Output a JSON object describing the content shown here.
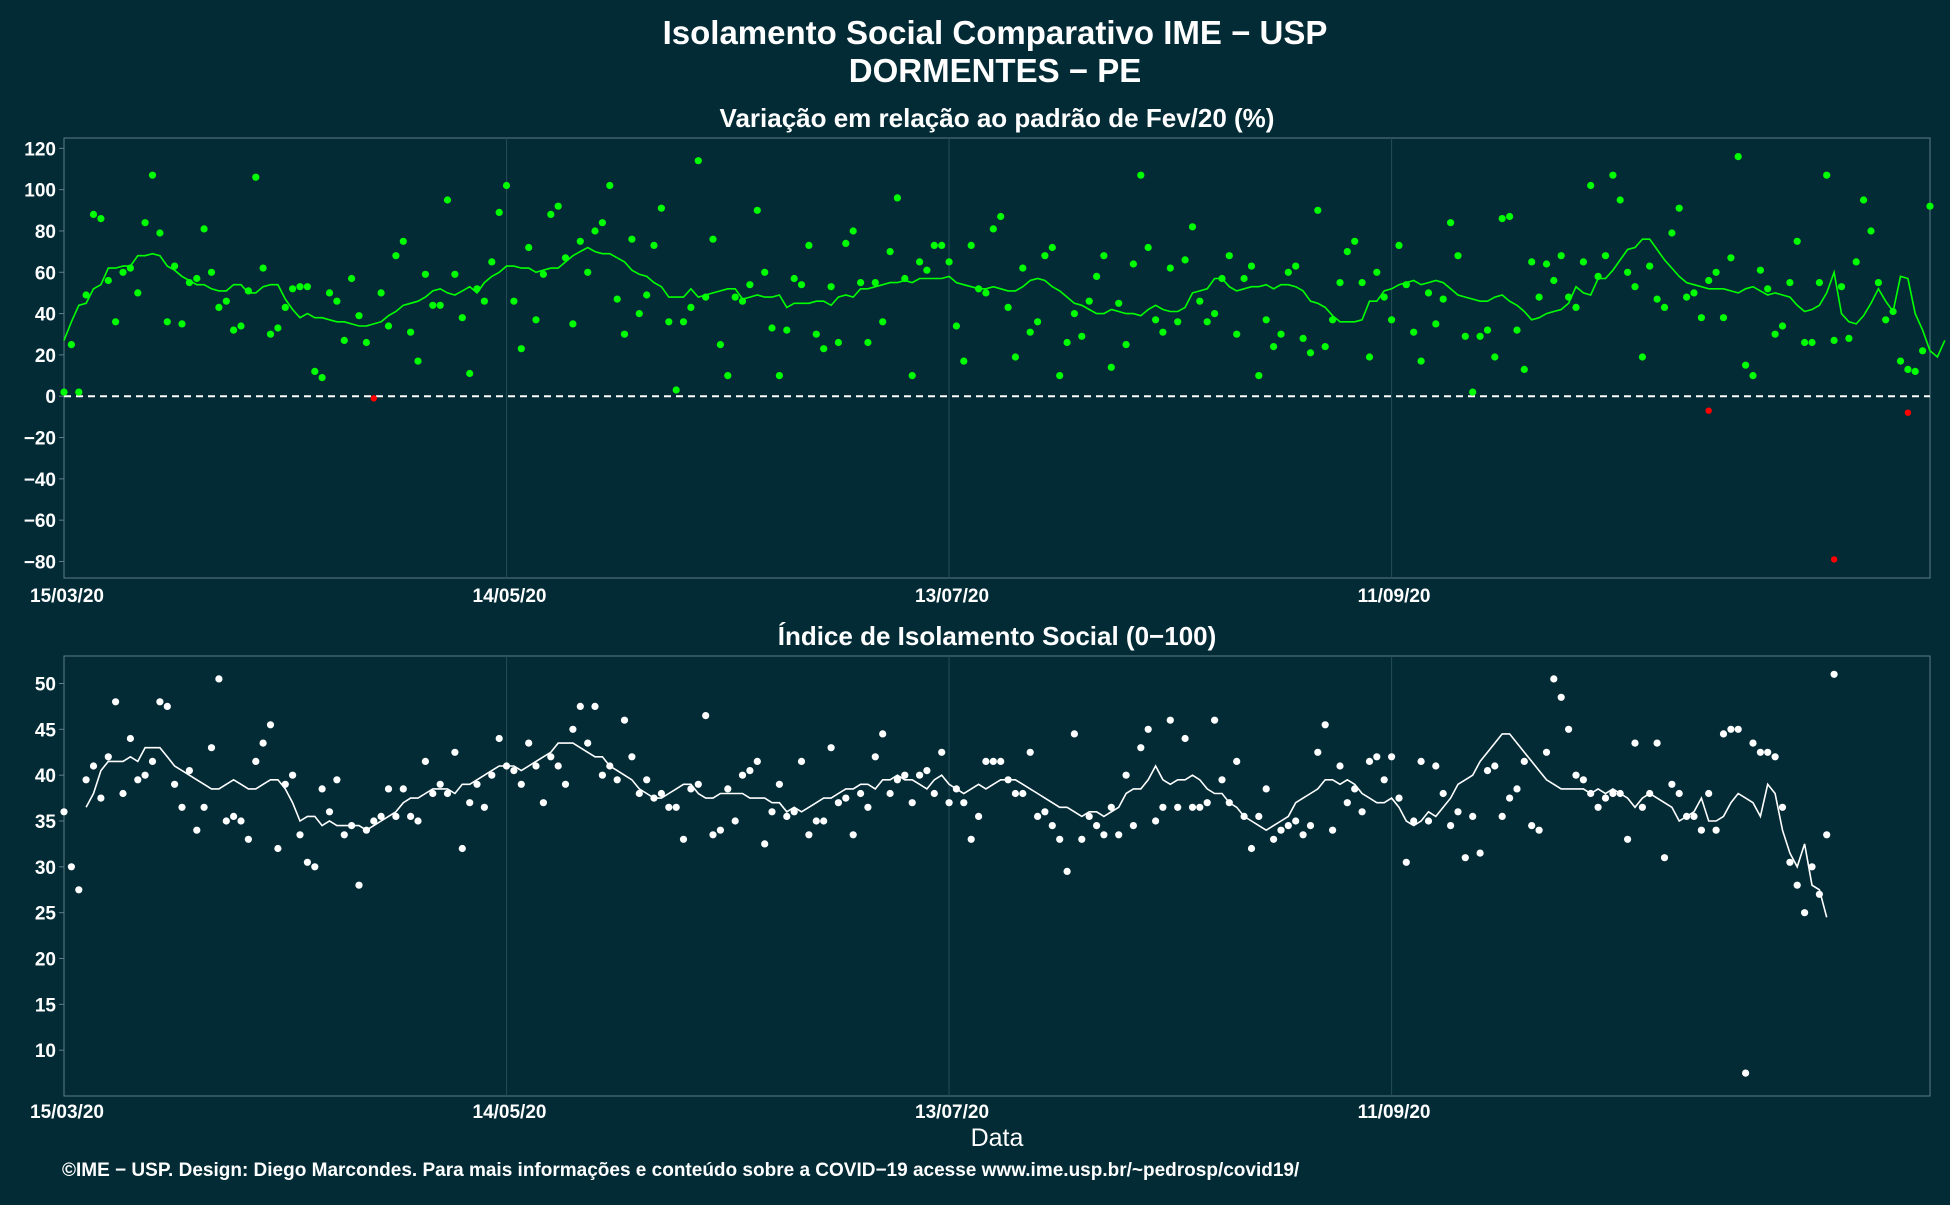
{
  "title_line1": "Isolamento Social Comparativo IME − USP",
  "title_line2": "DORMENTES − PE",
  "xlabel": "Data",
  "footer": "©IME − USP. Design: Diego Marcondes. Para mais informações e conteúdo sobre a COVID−19 acesse www.ime.usp.br/~pedrosp/covid19/",
  "colors": {
    "background": "#022b36",
    "text": "#ffffff",
    "grid": "#264c57",
    "green": "#00ff00",
    "red": "#ff0000",
    "white": "#ffffff"
  },
  "chart_data": [
    {
      "type": "scatter",
      "title": "Variação em relação ao padrão de Fev/20 (%)",
      "x_tick_labels": [
        "15/03/20",
        "14/05/20",
        "13/07/20",
        "11/09/20"
      ],
      "x_tick_days": [
        0,
        60,
        120,
        180
      ],
      "ylim": [
        -88,
        125
      ],
      "y_ticks": [
        -80,
        -60,
        -40,
        -20,
        0,
        20,
        40,
        60,
        80,
        100,
        120
      ],
      "reference_line": 0,
      "grid": true,
      "series": [
        {
          "kind": "points",
          "values": [
            2,
            25,
            2,
            49,
            88,
            86,
            56,
            36,
            60,
            62,
            50,
            84,
            107,
            79,
            36,
            63,
            35,
            55,
            57,
            81,
            60,
            43,
            46,
            32,
            34,
            51,
            106,
            62,
            30,
            33,
            43,
            52,
            53,
            53,
            12,
            9,
            50,
            46,
            27,
            57,
            39,
            26,
            -1,
            50,
            34,
            68,
            75,
            31,
            17,
            59,
            44,
            44,
            95,
            59,
            38,
            11,
            52,
            46,
            65,
            89,
            102,
            46,
            23,
            72,
            37,
            59,
            88,
            92,
            67,
            35,
            75,
            60,
            80,
            84,
            102,
            47,
            30,
            76,
            40,
            49,
            73,
            91,
            36,
            3,
            36,
            43,
            114,
            48,
            76,
            25,
            10,
            48,
            46,
            54,
            90,
            60,
            33,
            10,
            32,
            57,
            54,
            73,
            30,
            23,
            53,
            26,
            74,
            80,
            55,
            26,
            55,
            36,
            70,
            96,
            57,
            10,
            65,
            61,
            73,
            73,
            65,
            34,
            17,
            73,
            52,
            50,
            81,
            87,
            43,
            19,
            62,
            31,
            36,
            68,
            72,
            10,
            26,
            40,
            29,
            46,
            58,
            68,
            14,
            45,
            25,
            64,
            107,
            72,
            37,
            31,
            62,
            36,
            66,
            82,
            46,
            36,
            40,
            57,
            68,
            30,
            57,
            63,
            10,
            37,
            24,
            30,
            60,
            63,
            28,
            21,
            90,
            24,
            37,
            55,
            70,
            75,
            55,
            19,
            60,
            48,
            37,
            73,
            54,
            31,
            17,
            50,
            35,
            47,
            84,
            68,
            29,
            2,
            29,
            32,
            19,
            86,
            87,
            32,
            13,
            65,
            48,
            64,
            56,
            68,
            48,
            43,
            65,
            102,
            58,
            68,
            107,
            95,
            60,
            53,
            19,
            63,
            47,
            43,
            79,
            91,
            48,
            50,
            38,
            56,
            60,
            38,
            67,
            116,
            15,
            10,
            61,
            52,
            30,
            34,
            55,
            75,
            26,
            26,
            55,
            107,
            27,
            53,
            28,
            65,
            95,
            80,
            55,
            37,
            41,
            17,
            13,
            12,
            22,
            92
          ]
        },
        {
          "kind": "points_below_zero",
          "points": [
            [
              42,
              -1
            ],
            [
              223,
              -7
            ],
            [
              240,
              -79
            ],
            [
              250,
              -8
            ]
          ]
        },
        {
          "kind": "moving_average",
          "start_day": 0,
          "values": [
            27,
            36,
            44,
            45,
            52,
            54,
            62,
            62,
            63,
            63,
            68,
            68,
            69,
            68,
            63,
            61,
            58,
            56,
            54,
            54,
            52,
            51,
            51,
            54,
            54,
            50,
            50,
            53,
            54,
            54,
            47,
            42,
            38,
            40,
            38,
            38,
            37,
            36,
            36,
            35,
            34,
            34,
            35,
            36,
            39,
            41,
            44,
            45,
            46,
            48,
            51,
            52,
            50,
            49,
            51,
            53,
            50,
            55,
            58,
            60,
            63,
            63,
            62,
            62,
            60,
            61,
            62,
            62,
            65,
            68,
            70,
            72,
            70,
            69,
            69,
            67,
            65,
            61,
            59,
            58,
            55,
            53,
            48,
            48,
            48,
            52,
            48,
            49,
            50,
            51,
            52,
            52,
            47,
            48,
            49,
            48,
            48,
            49,
            43,
            45,
            45,
            45,
            46,
            46,
            44,
            48,
            49,
            48,
            52,
            52,
            53,
            54,
            55,
            55,
            56,
            55,
            57,
            57,
            57,
            57,
            58,
            55,
            54,
            53,
            52,
            52,
            53,
            52,
            51,
            51,
            53,
            56,
            57,
            56,
            53,
            51,
            48,
            45,
            44,
            42,
            40,
            40,
            42,
            41,
            40,
            40,
            39,
            42,
            44,
            42,
            41,
            41,
            43,
            50,
            51,
            52,
            57,
            57,
            53,
            51,
            52,
            53,
            53,
            54,
            52,
            54,
            54,
            53,
            51,
            46,
            45,
            43,
            39,
            36,
            36,
            36,
            37,
            46,
            46,
            51,
            52,
            54,
            55,
            56,
            54,
            55,
            56,
            55,
            52,
            49,
            48,
            47,
            46,
            46,
            48,
            49,
            46,
            44,
            41,
            37,
            38,
            40,
            41,
            42,
            45,
            53,
            50,
            49,
            57,
            57,
            61,
            66,
            71,
            72,
            76,
            76,
            71,
            66,
            62,
            58,
            55,
            54,
            53,
            52,
            52,
            52,
            51,
            50,
            52,
            53,
            51,
            49,
            50,
            49,
            48,
            44,
            41,
            42,
            44,
            50,
            60,
            40,
            36,
            35,
            39,
            45,
            52,
            46,
            41,
            58,
            57,
            40,
            32,
            22,
            19,
            27
          ]
        }
      ]
    },
    {
      "type": "scatter",
      "title": "Índice de Isolamento Social (0−100)",
      "x_tick_labels": [
        "15/03/20",
        "14/05/20",
        "13/07/20",
        "11/09/20"
      ],
      "x_tick_days": [
        0,
        60,
        120,
        180
      ],
      "ylim": [
        5,
        53
      ],
      "y_ticks": [
        10,
        15,
        20,
        25,
        30,
        35,
        40,
        45,
        50
      ],
      "grid": true,
      "series": [
        {
          "kind": "points",
          "values": [
            36,
            30,
            27.5,
            39.5,
            41,
            37.5,
            42,
            48,
            38,
            44,
            39.5,
            40,
            41.5,
            48,
            47.5,
            39,
            36.5,
            40.5,
            34,
            36.5,
            43,
            50.5,
            35,
            35.5,
            35,
            33,
            41.5,
            43.5,
            45.5,
            32,
            39,
            40,
            33.5,
            30.5,
            30,
            38.5,
            36,
            39.5,
            33.5,
            34.5,
            28,
            34,
            35,
            35.5,
            38.5,
            35.5,
            38.5,
            35.5,
            35,
            41.5,
            38,
            39,
            38,
            42.5,
            32,
            37,
            39,
            36.5,
            40,
            44,
            41,
            40.5,
            39,
            43.5,
            41,
            37,
            42,
            41,
            39,
            45,
            47.5,
            43.5,
            47.5,
            40,
            41,
            39.5,
            46,
            42,
            38,
            39.5,
            37.5,
            38,
            36.5,
            36.5,
            33,
            38.5,
            39,
            46.5,
            33.5,
            34,
            38.5,
            35,
            40,
            40.5,
            41.5,
            32.5,
            36,
            39,
            35.5,
            36,
            41.5,
            33.5,
            35,
            35,
            43,
            37,
            37.5,
            33.5,
            38,
            36.5,
            42,
            44.5,
            38,
            39.5,
            40,
            37,
            40,
            40.5,
            38,
            42.5,
            37,
            38.5,
            37,
            33,
            35.5,
            41.5,
            41.5,
            41.5,
            39.5,
            38,
            38,
            42.5,
            35.5,
            36,
            34.5,
            33,
            29.5,
            44.5,
            33,
            35.5,
            34.5,
            33.5,
            36.5,
            33.5,
            40,
            34.5,
            43,
            45,
            35,
            36.5,
            46,
            36.5,
            44,
            36.5,
            36.5,
            37,
            46,
            39.5,
            37,
            41.5,
            35.5,
            32,
            35.5,
            38.5,
            33,
            34,
            34.5,
            35,
            33.5,
            34.5,
            42.5,
            45.5,
            34,
            41,
            37,
            38.5,
            36,
            41.5,
            42,
            39.5,
            42,
            37.5,
            30.5,
            35,
            41.5,
            35,
            41,
            38,
            34.5,
            36,
            31,
            35.5,
            31.5,
            40.5,
            41,
            35.5,
            37.5,
            38.5,
            41.5,
            34.5,
            34,
            42.5,
            50.5,
            48.5,
            45,
            40,
            39.5,
            38,
            36.5,
            37.5,
            38,
            38,
            33,
            43.5,
            36.5,
            38,
            43.5,
            31,
            39,
            38,
            35.5,
            35.5,
            34,
            38,
            34,
            44.5,
            45,
            45,
            7.5,
            43.5,
            42.5,
            42.5,
            42,
            36.5,
            30.5,
            28,
            25,
            30,
            27,
            33.5,
            51
          ]
        },
        {
          "kind": "moving_average",
          "start_day": 3,
          "values": [
            36.5,
            38,
            40.5,
            41.5,
            41.5,
            41.5,
            42,
            41.5,
            43,
            43,
            43,
            42,
            41,
            40.5,
            40,
            39.5,
            39,
            38.5,
            38.5,
            39,
            39.5,
            39,
            38.5,
            38.5,
            39,
            39.5,
            39.5,
            38.5,
            37,
            35,
            35.5,
            35.5,
            34.5,
            35,
            34.5,
            34.5,
            34.5,
            34.5,
            34,
            34.5,
            35,
            35.5,
            36,
            37,
            37.5,
            37.5,
            38,
            38.5,
            38.5,
            38.5,
            38,
            39,
            39,
            39.5,
            40,
            40.5,
            41,
            41,
            41,
            40.5,
            41,
            41.5,
            42,
            42.5,
            43.5,
            43.5,
            43.5,
            43,
            42.5,
            42,
            42,
            41,
            40.5,
            40,
            39.5,
            38.5,
            38,
            37.5,
            37.5,
            38,
            38.5,
            39,
            39,
            38,
            37.5,
            37.5,
            38,
            38,
            38,
            38,
            37.5,
            37.5,
            37.5,
            37,
            37,
            36,
            36.5,
            36,
            36.5,
            37,
            37.5,
            37.5,
            38,
            38.5,
            38.5,
            39,
            39,
            38.5,
            39.5,
            39.5,
            40,
            39.5,
            39.5,
            39,
            38.5,
            39.5,
            40,
            39,
            38.5,
            38,
            38.5,
            39,
            38.5,
            39,
            39.5,
            39.5,
            39.5,
            39,
            38.5,
            38,
            37.5,
            37,
            36.5,
            36.5,
            36,
            35.5,
            36,
            36,
            35.5,
            36,
            36.5,
            38,
            38.5,
            38.5,
            39.5,
            41,
            39.5,
            39,
            39.5,
            39.5,
            40,
            39.5,
            38.5,
            38,
            38,
            37,
            36.5,
            35.5,
            35,
            34.5,
            34,
            34.5,
            35,
            35.5,
            37,
            37.5,
            38,
            38.5,
            39.5,
            39.5,
            39,
            39.5,
            39,
            38,
            37.5,
            37,
            37,
            37.5,
            36.5,
            35,
            34.5,
            35,
            36,
            35.5,
            36.5,
            37.5,
            39,
            39.5,
            40,
            41.5,
            42.5,
            43.5,
            44.5,
            44.5,
            43.5,
            42.5,
            41.5,
            40.5,
            39.5,
            39,
            38.5,
            38.5,
            38.5,
            38.5,
            38,
            38.5,
            38,
            38.5,
            38,
            37.5,
            36.5,
            37.5,
            38,
            37.5,
            37,
            36.5,
            35,
            35.5,
            36,
            37.5,
            35,
            35,
            35.5,
            37,
            38,
            37.5,
            37,
            35.5,
            39,
            38,
            34,
            31.5,
            30,
            32.5,
            28,
            27.5,
            24.5
          ]
        }
      ]
    }
  ]
}
